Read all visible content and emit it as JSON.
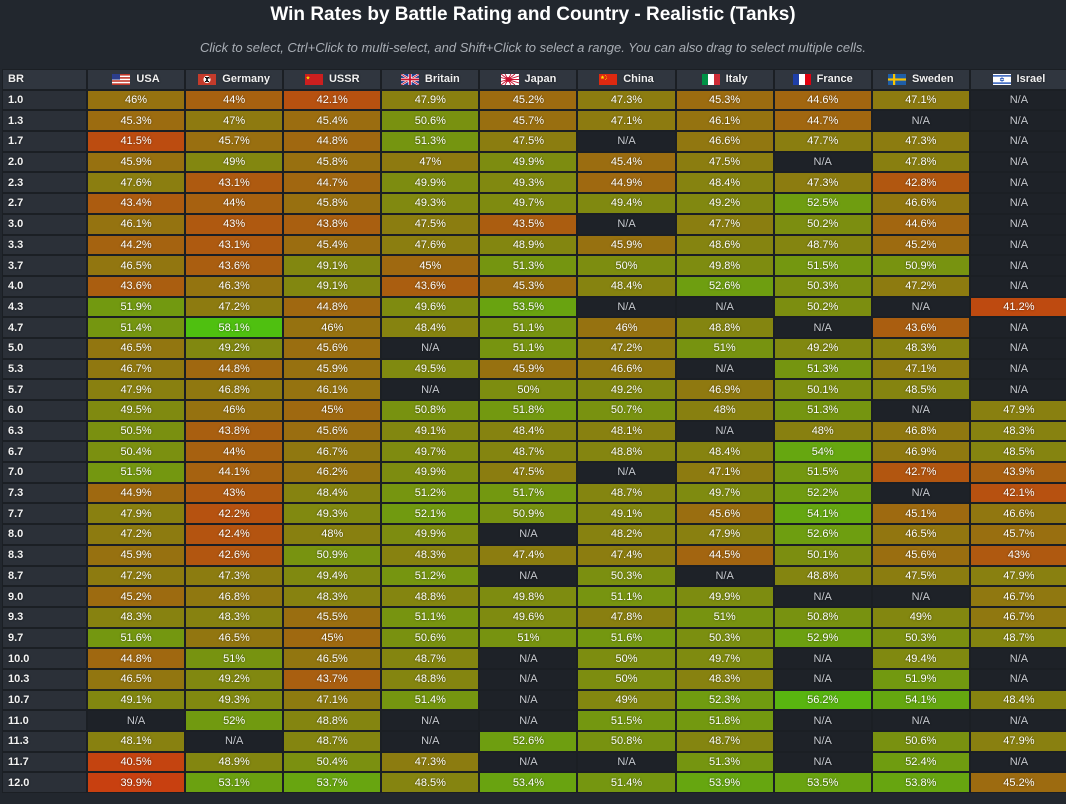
{
  "title": "Win Rates by Battle Rating and Country - Realistic (Tanks)",
  "subtitle": "Click to select, Ctrl+Click to multi-select, and Shift+Click to select a range. You can also drag to select multiple cells.",
  "br_header": "BR",
  "countries": [
    {
      "name": "USA",
      "flag_icon": "usa-flag-icon"
    },
    {
      "name": "Germany",
      "flag_icon": "germany-flag-icon"
    },
    {
      "name": "USSR",
      "flag_icon": "ussr-flag-icon"
    },
    {
      "name": "Britain",
      "flag_icon": "britain-flag-icon"
    },
    {
      "name": "Japan",
      "flag_icon": "japan-flag-icon"
    },
    {
      "name": "China",
      "flag_icon": "china-flag-icon"
    },
    {
      "name": "Italy",
      "flag_icon": "italy-flag-icon"
    },
    {
      "name": "France",
      "flag_icon": "france-flag-icon"
    },
    {
      "name": "Sweden",
      "flag_icon": "sweden-flag-icon"
    },
    {
      "name": "Israel",
      "flag_icon": "israel-flag-icon"
    }
  ],
  "colors": {
    "na_cell": "#1e2228",
    "low": "#c84010",
    "mid": "#8e7a10",
    "high": "#4fc010",
    "header_bg": "#30363f",
    "page_bg": "#22272e"
  },
  "rows": [
    {
      "br": "1.0",
      "values": [
        "46%",
        "44%",
        "42.1%",
        "47.9%",
        "45.2%",
        "47.3%",
        "45.3%",
        "44.6%",
        "47.1%",
        "N/A"
      ]
    },
    {
      "br": "1.3",
      "values": [
        "45.3%",
        "47%",
        "45.4%",
        "50.6%",
        "45.7%",
        "47.1%",
        "46.1%",
        "44.7%",
        "N/A",
        "N/A"
      ]
    },
    {
      "br": "1.7",
      "values": [
        "41.5%",
        "45.7%",
        "44.8%",
        "51.3%",
        "47.5%",
        "N/A",
        "46.6%",
        "47.7%",
        "47.3%",
        "N/A"
      ]
    },
    {
      "br": "2.0",
      "values": [
        "45.9%",
        "49%",
        "45.8%",
        "47%",
        "49.9%",
        "45.4%",
        "47.5%",
        "N/A",
        "47.8%",
        "N/A"
      ]
    },
    {
      "br": "2.3",
      "values": [
        "47.6%",
        "43.1%",
        "44.7%",
        "49.9%",
        "49.3%",
        "44.9%",
        "48.4%",
        "47.3%",
        "42.8%",
        "N/A"
      ]
    },
    {
      "br": "2.7",
      "values": [
        "43.4%",
        "44%",
        "45.8%",
        "49.3%",
        "49.7%",
        "49.4%",
        "49.2%",
        "52.5%",
        "46.6%",
        "N/A"
      ]
    },
    {
      "br": "3.0",
      "values": [
        "46.1%",
        "43%",
        "43.8%",
        "47.5%",
        "43.5%",
        "N/A",
        "47.7%",
        "50.2%",
        "44.6%",
        "N/A"
      ]
    },
    {
      "br": "3.3",
      "values": [
        "44.2%",
        "43.1%",
        "45.4%",
        "47.6%",
        "48.9%",
        "45.9%",
        "48.6%",
        "48.7%",
        "45.2%",
        "N/A"
      ]
    },
    {
      "br": "3.7",
      "values": [
        "46.5%",
        "43.6%",
        "49.1%",
        "45%",
        "51.3%",
        "50%",
        "49.8%",
        "51.5%",
        "50.9%",
        "N/A"
      ]
    },
    {
      "br": "4.0",
      "values": [
        "43.6%",
        "46.3%",
        "49.1%",
        "43.6%",
        "45.3%",
        "48.4%",
        "52.6%",
        "50.3%",
        "47.2%",
        "N/A"
      ]
    },
    {
      "br": "4.3",
      "values": [
        "51.9%",
        "47.2%",
        "44.8%",
        "49.6%",
        "53.5%",
        "N/A",
        "N/A",
        "50.2%",
        "N/A",
        "41.2%"
      ]
    },
    {
      "br": "4.7",
      "values": [
        "51.4%",
        "58.1%",
        "46%",
        "48.4%",
        "51.1%",
        "46%",
        "48.8%",
        "N/A",
        "43.6%",
        "N/A"
      ]
    },
    {
      "br": "5.0",
      "values": [
        "46.5%",
        "49.2%",
        "45.6%",
        "N/A",
        "51.1%",
        "47.2%",
        "51%",
        "49.2%",
        "48.3%",
        "N/A"
      ]
    },
    {
      "br": "5.3",
      "values": [
        "46.7%",
        "44.8%",
        "45.9%",
        "49.5%",
        "45.9%",
        "46.6%",
        "N/A",
        "51.3%",
        "47.1%",
        "N/A"
      ]
    },
    {
      "br": "5.7",
      "values": [
        "47.9%",
        "46.8%",
        "46.1%",
        "N/A",
        "50%",
        "49.2%",
        "46.9%",
        "50.1%",
        "48.5%",
        "N/A"
      ]
    },
    {
      "br": "6.0",
      "values": [
        "49.5%",
        "46%",
        "45%",
        "50.8%",
        "51.8%",
        "50.7%",
        "48%",
        "51.3%",
        "N/A",
        "47.9%"
      ]
    },
    {
      "br": "6.3",
      "values": [
        "50.5%",
        "43.8%",
        "45.6%",
        "49.1%",
        "48.4%",
        "48.1%",
        "N/A",
        "48%",
        "46.8%",
        "48.3%"
      ]
    },
    {
      "br": "6.7",
      "values": [
        "50.4%",
        "44%",
        "46.7%",
        "49.7%",
        "48.7%",
        "48.8%",
        "48.4%",
        "54%",
        "46.9%",
        "48.5%"
      ]
    },
    {
      "br": "7.0",
      "values": [
        "51.5%",
        "44.1%",
        "46.2%",
        "49.9%",
        "47.5%",
        "N/A",
        "47.1%",
        "51.5%",
        "42.7%",
        "43.9%"
      ]
    },
    {
      "br": "7.3",
      "values": [
        "44.9%",
        "43%",
        "48.4%",
        "51.2%",
        "51.7%",
        "48.7%",
        "49.7%",
        "52.2%",
        "N/A",
        "42.1%"
      ]
    },
    {
      "br": "7.7",
      "values": [
        "47.9%",
        "42.2%",
        "49.3%",
        "52.1%",
        "50.9%",
        "49.1%",
        "45.6%",
        "54.1%",
        "45.1%",
        "46.6%"
      ]
    },
    {
      "br": "8.0",
      "values": [
        "47.2%",
        "42.4%",
        "48%",
        "49.9%",
        "N/A",
        "48.2%",
        "47.9%",
        "52.6%",
        "46.5%",
        "45.7%"
      ]
    },
    {
      "br": "8.3",
      "values": [
        "45.9%",
        "42.6%",
        "50.9%",
        "48.3%",
        "47.4%",
        "47.4%",
        "44.5%",
        "50.1%",
        "45.6%",
        "43%"
      ]
    },
    {
      "br": "8.7",
      "values": [
        "47.2%",
        "47.3%",
        "49.4%",
        "51.2%",
        "N/A",
        "50.3%",
        "N/A",
        "48.8%",
        "47.5%",
        "47.9%"
      ]
    },
    {
      "br": "9.0",
      "values": [
        "45.2%",
        "46.8%",
        "48.3%",
        "48.8%",
        "49.8%",
        "51.1%",
        "49.9%",
        "N/A",
        "N/A",
        "46.7%"
      ]
    },
    {
      "br": "9.3",
      "values": [
        "48.3%",
        "48.3%",
        "45.5%",
        "51.1%",
        "49.6%",
        "47.8%",
        "51%",
        "50.8%",
        "49%",
        "46.7%"
      ]
    },
    {
      "br": "9.7",
      "values": [
        "51.6%",
        "46.5%",
        "45%",
        "50.6%",
        "51%",
        "51.6%",
        "50.3%",
        "52.9%",
        "50.3%",
        "48.7%"
      ]
    },
    {
      "br": "10.0",
      "values": [
        "44.8%",
        "51%",
        "46.5%",
        "48.7%",
        "N/A",
        "50%",
        "49.7%",
        "N/A",
        "49.4%",
        "N/A"
      ]
    },
    {
      "br": "10.3",
      "values": [
        "46.5%",
        "49.2%",
        "43.7%",
        "48.8%",
        "N/A",
        "50%",
        "48.3%",
        "N/A",
        "51.9%",
        "N/A"
      ]
    },
    {
      "br": "10.7",
      "values": [
        "49.1%",
        "49.3%",
        "47.1%",
        "51.4%",
        "N/A",
        "49%",
        "52.3%",
        "56.2%",
        "54.1%",
        "48.4%"
      ]
    },
    {
      "br": "11.0",
      "values": [
        "N/A",
        "52%",
        "48.8%",
        "N/A",
        "N/A",
        "51.5%",
        "51.8%",
        "N/A",
        "N/A",
        "N/A"
      ]
    },
    {
      "br": "11.3",
      "values": [
        "48.1%",
        "N/A",
        "48.7%",
        "N/A",
        "52.6%",
        "50.8%",
        "48.7%",
        "N/A",
        "50.6%",
        "47.9%"
      ]
    },
    {
      "br": "11.7",
      "values": [
        "40.5%",
        "48.9%",
        "50.4%",
        "47.3%",
        "N/A",
        "N/A",
        "51.3%",
        "N/A",
        "52.4%",
        "N/A"
      ]
    },
    {
      "br": "12.0",
      "values": [
        "39.9%",
        "53.1%",
        "53.7%",
        "48.5%",
        "53.4%",
        "51.4%",
        "53.9%",
        "53.5%",
        "53.8%",
        "45.2%"
      ]
    }
  ]
}
